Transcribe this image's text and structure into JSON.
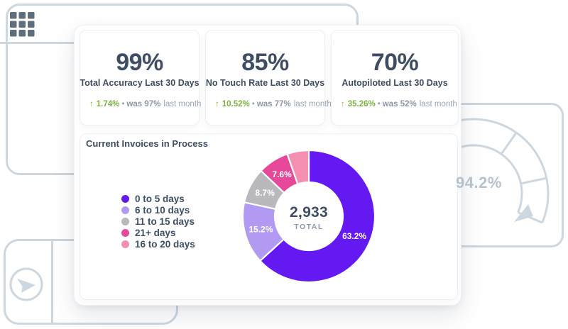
{
  "kpi_cards": [
    {
      "value": "99%",
      "label": "Total Accuracy Last 30 Days",
      "delta_pct": "1.74%",
      "prev": "was 97%",
      "period": "last month"
    },
    {
      "value": "85%",
      "label": "No Touch Rate Last 30 Days",
      "delta_pct": "10.52%",
      "prev": "was 77%",
      "period": "last month"
    },
    {
      "value": "70%",
      "label": "Autopiloted Last 30 Days",
      "delta_pct": "35.26%",
      "prev": "was 52%",
      "period": "last month"
    }
  ],
  "icons": {
    "up_arrow": "↑",
    "separator": "•",
    "top_left": "grid-icon",
    "bottom_left": "send-icon"
  },
  "invoices": {
    "title": "Current Invoices in Process",
    "total_value": "2,933",
    "total_label": "TOTAL"
  },
  "chart_data": {
    "type": "pie",
    "donut": true,
    "title": "Current Invoices in Process",
    "center_total": "2,933",
    "center_label": "TOTAL",
    "start_angle_deg": 0,
    "direction": "clockwise",
    "legend_position": "left",
    "slices": [
      {
        "label": "0 to 5 days",
        "pct": 63.2,
        "color": "#6418f2",
        "data_label": "63.2%"
      },
      {
        "label": "6 to 10 days",
        "pct": 15.2,
        "color": "#b29af3",
        "data_label": "15.2%"
      },
      {
        "label": "11 to 15 days",
        "pct": 8.7,
        "color": "#b8b8bd",
        "data_label": "8.7%"
      },
      {
        "label": "21+ days",
        "pct": 7.6,
        "color": "#e8489a",
        "data_label": "7.6%"
      },
      {
        "label": "16 to 20 days",
        "pct": 5.3,
        "color": "#f48fb2",
        "data_label": ""
      }
    ]
  },
  "gauge": {
    "value": "94.2%"
  },
  "colors": {
    "accent_purple": "#6418f2",
    "positive_green": "#7cb342",
    "text_dark": "#3f4d63",
    "text_gray": "#8f99a8",
    "decor_stroke": "#ccd7df",
    "grid_icon": "#5d6f7d"
  }
}
